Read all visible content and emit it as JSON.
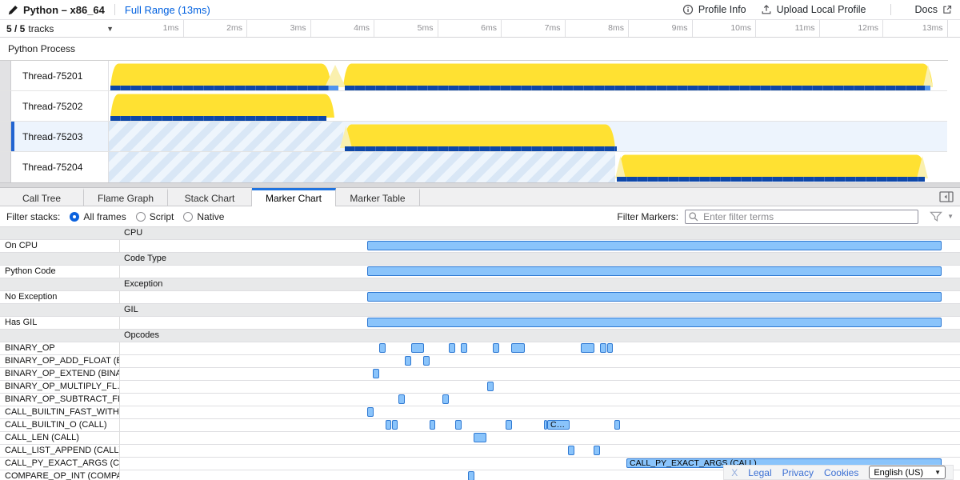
{
  "colors": {
    "selbg": "#edf4fd",
    "selaccent": "#2264d1",
    "yellow": "#ffe132",
    "yellowlight": "#faf0ae",
    "sampdark": "#0d47a8",
    "samplight": "#5094ef",
    "markfill": "#8ac4fb",
    "markborder": "#2e78d2",
    "hdrbg": "#e8e9ea",
    "hatchA": "#d9e7f6",
    "hatchB": "#eef5fc",
    "link": "#0060df"
  },
  "topbar": {
    "title": "Python – x86_64",
    "range_link": "Full Range (13ms)",
    "profile_info": "Profile Info",
    "upload": "Upload Local Profile",
    "docs": "Docs"
  },
  "timeline": {
    "tracks_count": "5 / 5",
    "tracks_word": "tracks",
    "ticks": [
      "1ms",
      "2ms",
      "3ms",
      "4ms",
      "5ms",
      "6ms",
      "7ms",
      "8ms",
      "9ms",
      "10ms",
      "11ms",
      "12ms",
      "13ms"
    ]
  },
  "process": {
    "label": "Python Process"
  },
  "tracks": {
    "rows": [
      {
        "label": "Thread-75201",
        "selected": false,
        "graph": {
          "hatch": [],
          "fills": [
            {
              "t0": 0.03,
              "t1": 3.5
            },
            {
              "t0": 3.69,
              "t1": 12.96
            }
          ],
          "lights": [
            {
              "t0": 3.4,
              "t1": 3.72
            },
            {
              "t0": 12.8,
              "t1": 12.96
            }
          ],
          "samples": [
            {
              "t0": 0.03,
              "t1": 3.46,
              "c": "dark"
            },
            {
              "t0": 3.46,
              "t1": 3.61,
              "c": "light"
            },
            {
              "t0": 3.71,
              "t1": 12.83,
              "c": "dark"
            },
            {
              "t0": 12.83,
              "t1": 12.92,
              "c": "light"
            }
          ]
        }
      },
      {
        "label": "Thread-75202",
        "selected": false,
        "graph": {
          "hatch": [],
          "fills": [
            {
              "t0": 0.03,
              "t1": 3.55
            }
          ],
          "lights": [],
          "samples": [
            {
              "t0": 0.03,
              "t1": 3.42,
              "c": "dark"
            }
          ]
        }
      },
      {
        "label": "Thread-75203",
        "selected": true,
        "graph": {
          "hatch": [
            {
              "t0": 0,
              "t1": 3.69
            }
          ],
          "fills": [
            {
              "t0": 3.69,
              "t1": 7.96
            }
          ],
          "lights": [
            {
              "t0": 3.64,
              "t1": 3.82
            }
          ],
          "samples": [
            {
              "t0": 3.71,
              "t1": 7.99,
              "c": "dark"
            }
          ]
        }
      },
      {
        "label": "Thread-75204",
        "selected": false,
        "graph": {
          "hatch": [
            {
              "t0": 0,
              "t1": 7.96
            }
          ],
          "fills": [
            {
              "t0": 7.99,
              "t1": 12.86
            }
          ],
          "lights": [
            {
              "t0": 7.96,
              "t1": 8.12
            },
            {
              "t0": 12.7,
              "t1": 12.88
            }
          ],
          "samples": [
            {
              "t0": 7.99,
              "t1": 12.83,
              "c": "dark"
            }
          ]
        }
      }
    ]
  },
  "tabs": {
    "items": [
      {
        "label": "Call Tree",
        "selected": false
      },
      {
        "label": "Flame Graph",
        "selected": false
      },
      {
        "label": "Stack Chart",
        "selected": false
      },
      {
        "label": "Marker Chart",
        "selected": true
      },
      {
        "label": "Marker Table",
        "selected": false
      }
    ]
  },
  "filters": {
    "stacks_label": "Filter stacks:",
    "options": [
      {
        "label": "All frames",
        "checked": true
      },
      {
        "label": "Script",
        "checked": false
      },
      {
        "label": "Native",
        "checked": false
      }
    ],
    "markers_label": "Filter Markers:",
    "placeholder": "Enter filter terms"
  },
  "marker_chart": {
    "rows": [
      {
        "type": "header",
        "label": "CPU"
      },
      {
        "type": "row",
        "label": "On CPU",
        "bars": [
          {
            "t0": 3.89,
            "t1": 12.92
          }
        ]
      },
      {
        "type": "header",
        "label": "Code Type"
      },
      {
        "type": "row",
        "label": "Python Code",
        "bars": [
          {
            "t0": 3.89,
            "t1": 12.92
          }
        ]
      },
      {
        "type": "header",
        "label": "Exception"
      },
      {
        "type": "row",
        "label": "No Exception",
        "bars": [
          {
            "t0": 3.89,
            "t1": 12.92
          }
        ]
      },
      {
        "type": "header",
        "label": "GIL"
      },
      {
        "type": "row",
        "label": "Has GIL",
        "bars": [
          {
            "t0": 3.89,
            "t1": 12.92
          }
        ]
      },
      {
        "type": "header",
        "label": "Opcodes"
      },
      {
        "type": "row",
        "label": "BINARY_OP",
        "bars": [
          {
            "t0": 4.08,
            "t1": 4.18
          },
          {
            "t0": 4.58,
            "t1": 4.78
          },
          {
            "t0": 5.17,
            "t1": 5.27
          },
          {
            "t0": 5.36,
            "t1": 5.46
          },
          {
            "t0": 5.86,
            "t1": 5.96
          },
          {
            "t0": 6.15,
            "t1": 6.37
          },
          {
            "t0": 7.25,
            "t1": 7.46
          },
          {
            "t0": 7.55,
            "t1": 7.65
          },
          {
            "t0": 7.66,
            "t1": 7.75
          }
        ]
      },
      {
        "type": "row",
        "label": "BINARY_OP_ADD_FLOAT (B…",
        "bars": [
          {
            "t0": 4.48,
            "t1": 4.58
          },
          {
            "t0": 4.77,
            "t1": 4.87
          }
        ]
      },
      {
        "type": "row",
        "label": "BINARY_OP_EXTEND (BINA…",
        "bars": [
          {
            "t0": 3.98,
            "t1": 4.08
          }
        ]
      },
      {
        "type": "row",
        "label": "BINARY_OP_MULTIPLY_FL…",
        "bars": [
          {
            "t0": 5.77,
            "t1": 5.87
          }
        ]
      },
      {
        "type": "row",
        "label": "BINARY_OP_SUBTRACT_FL…",
        "bars": [
          {
            "t0": 4.38,
            "t1": 4.48
          },
          {
            "t0": 5.07,
            "t1": 5.17
          }
        ]
      },
      {
        "type": "row",
        "label": "CALL_BUILTIN_FAST_WITH…",
        "bars": [
          {
            "t0": 3.89,
            "t1": 3.99
          }
        ]
      },
      {
        "type": "row",
        "label": "CALL_BUILTIN_O (CALL)",
        "bars": [
          {
            "t0": 4.18,
            "t1": 4.26
          },
          {
            "t0": 4.28,
            "t1": 4.37
          },
          {
            "t0": 4.87,
            "t1": 4.96
          },
          {
            "t0": 5.27,
            "t1": 5.37
          },
          {
            "t0": 6.06,
            "t1": 6.16
          },
          {
            "t0": 6.67,
            "t1": 6.7
          },
          {
            "t0": 6.72,
            "t1": 7.07,
            "label": "C…"
          },
          {
            "t0": 7.77,
            "t1": 7.86
          }
        ]
      },
      {
        "type": "row",
        "label": "CALL_LEN (CALL)",
        "bars": [
          {
            "t0": 5.56,
            "t1": 5.76
          }
        ]
      },
      {
        "type": "row",
        "label": "CALL_LIST_APPEND (CALL)",
        "bars": [
          {
            "t0": 7.04,
            "t1": 7.14
          },
          {
            "t0": 7.45,
            "t1": 7.55
          }
        ]
      },
      {
        "type": "row",
        "label": "CALL_PY_EXACT_ARGS (C…",
        "bars": [
          {
            "t0": 7.96,
            "t1": 12.92,
            "label": "CALL_PY_EXACT_ARGS (CALL)",
            "selected": true
          }
        ]
      },
      {
        "type": "row",
        "label": "COMPARE_OP_INT (COMPA…",
        "bars": [
          {
            "t0": 5.47,
            "t1": 5.57
          }
        ]
      }
    ]
  },
  "footer": {
    "links": [
      "X",
      "Legal",
      "Privacy",
      "Cookies"
    ],
    "language": "English (US)"
  }
}
